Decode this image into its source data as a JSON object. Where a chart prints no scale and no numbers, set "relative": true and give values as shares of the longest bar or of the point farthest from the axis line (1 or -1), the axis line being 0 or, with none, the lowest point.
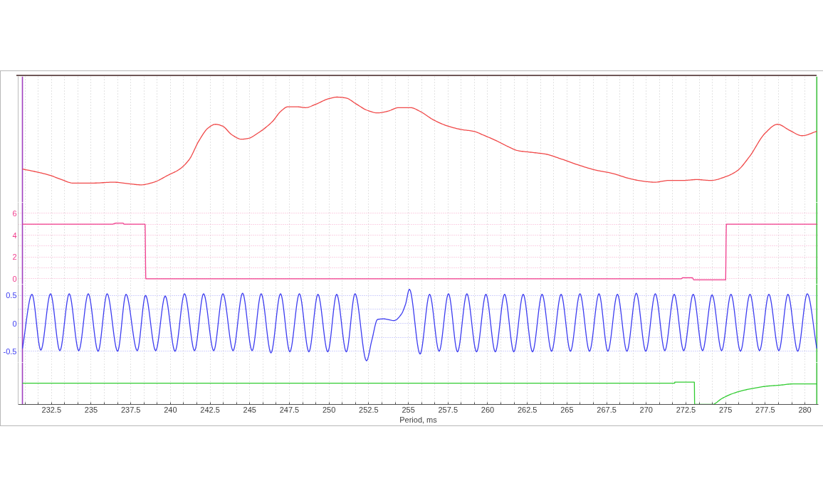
{
  "chart_data": [
    {
      "type": "line",
      "relative": true,
      "xlim": [
        230.4,
        280.85
      ],
      "tick_labels": false,
      "grid": "x",
      "xticks": [
        {
          "value": 230.833,
          "label": null
        },
        {
          "value": 231.667,
          "label": null
        },
        232.5,
        {
          "value": 233.333,
          "label": null
        },
        {
          "value": 234.167,
          "label": null
        },
        235,
        {
          "value": 235.833,
          "label": null
        },
        {
          "value": 236.667,
          "label": null
        },
        237.5,
        {
          "value": 238.333,
          "label": null
        },
        {
          "value": 239.167,
          "label": null
        },
        240,
        {
          "value": 240.833,
          "label": null
        },
        {
          "value": 241.667,
          "label": null
        },
        242.5,
        {
          "value": 243.333,
          "label": null
        },
        {
          "value": 244.167,
          "label": null
        },
        245,
        {
          "value": 245.833,
          "label": null
        },
        {
          "value": 246.667,
          "label": null
        },
        247.5,
        {
          "value": 248.333,
          "label": null
        },
        {
          "value": 249.167,
          "label": null
        },
        250,
        {
          "value": 250.833,
          "label": null
        },
        {
          "value": 251.667,
          "label": null
        },
        252.5,
        {
          "value": 253.333,
          "label": null
        },
        {
          "value": 254.167,
          "label": null
        },
        255,
        {
          "value": 255.833,
          "label": null
        },
        {
          "value": 256.667,
          "label": null
        },
        257.5,
        {
          "value": 258.333,
          "label": null
        },
        {
          "value": 259.167,
          "label": null
        },
        260,
        {
          "value": 260.833,
          "label": null
        },
        {
          "value": 261.667,
          "label": null
        },
        262.5,
        {
          "value": 263.333,
          "label": null
        },
        {
          "value": 264.167,
          "label": null
        },
        265,
        {
          "value": 265.833,
          "label": null
        },
        {
          "value": 266.667,
          "label": null
        },
        267.5,
        {
          "value": 268.333,
          "label": null
        },
        {
          "value": 269.167,
          "label": null
        },
        270,
        {
          "value": 270.833,
          "label": null
        },
        {
          "value": 271.667,
          "label": null
        },
        272.5,
        {
          "value": 273.333,
          "label": null
        },
        {
          "value": 274.167,
          "label": null
        },
        275,
        {
          "value": 275.833,
          "label": null
        },
        {
          "value": 276.667,
          "label": null
        },
        277.5,
        {
          "value": 278.333,
          "label": null
        },
        {
          "value": 279.167,
          "label": null
        },
        280
      ],
      "x": [
        230.67,
        231.49,
        232.39,
        233.13,
        233.88,
        235.07,
        236.42,
        237.5,
        238.13,
        238.95,
        239.85,
        240.59,
        241.19,
        241.79,
        242.39,
        242.84,
        243.28,
        243.88,
        244.48,
        244.92,
        245.52,
        246.42,
        246.97,
        247.41,
        247.96,
        248.52,
        249.18,
        249.95,
        250.51,
        251.06,
        251.73,
        252.4,
        253.06,
        253.72,
        254.38,
        255.15,
        255.71,
        256.59,
        257.48,
        258.36,
        259.13,
        259.69,
        260.58,
        261.24,
        261.9,
        262.79,
        263.67,
        264.56,
        265.66,
        266.77,
        267.88,
        268.98,
        269.86,
        270.53,
        271.41,
        272.3,
        273.18,
        274.07,
        274.96,
        275.73,
        276.5,
        277.5,
        278.27,
        279.05,
        279.82,
        280.75
      ],
      "color": "#f04848",
      "values": [
        0.18,
        0.15,
        0.11,
        0.06,
        0.02,
        0.02,
        0.03,
        0.01,
        0,
        0.03,
        0.11,
        0.18,
        0.29,
        0.5,
        0.65,
        0.69,
        0.67,
        0.57,
        0.52,
        0.53,
        0.59,
        0.72,
        0.84,
        0.89,
        0.89,
        0.88,
        0.92,
        0.98,
        1,
        0.99,
        0.92,
        0.85,
        0.82,
        0.84,
        0.88,
        0.88,
        0.84,
        0.74,
        0.67,
        0.63,
        0.61,
        0.57,
        0.5,
        0.44,
        0.39,
        0.37,
        0.35,
        0.3,
        0.23,
        0.17,
        0.13,
        0.07,
        0.04,
        0.03,
        0.05,
        0.05,
        0.06,
        0.05,
        0.09,
        0.16,
        0.32,
        0.59,
        0.69,
        0.62,
        0.56,
        0.61
      ],
      "ref_lines": [
        {
          "axis": "x",
          "value": 230.67,
          "color": "#a040c0"
        },
        {
          "axis": "x",
          "value": 280.75,
          "color": "#40c040"
        }
      ]
    },
    {
      "type": "line",
      "xlim": [
        230.4,
        280.85
      ],
      "ylim": [
        -0.5,
        7
      ],
      "yticks": [
        0,
        {
          "value": 1,
          "label": null
        },
        2,
        {
          "value": 3,
          "label": null
        },
        4,
        {
          "value": 5,
          "label": null
        },
        6
      ],
      "tick_labels": "y",
      "grid": true,
      "xticks": [
        {
          "value": 230.833,
          "label": null
        },
        {
          "value": 231.667,
          "label": null
        },
        232.5,
        {
          "value": 233.333,
          "label": null
        },
        {
          "value": 234.167,
          "label": null
        },
        235,
        {
          "value": 235.833,
          "label": null
        },
        {
          "value": 236.667,
          "label": null
        },
        237.5,
        {
          "value": 238.333,
          "label": null
        },
        {
          "value": 239.167,
          "label": null
        },
        240,
        {
          "value": 240.833,
          "label": null
        },
        {
          "value": 241.667,
          "label": null
        },
        242.5,
        {
          "value": 243.333,
          "label": null
        },
        {
          "value": 244.167,
          "label": null
        },
        245,
        {
          "value": 245.833,
          "label": null
        },
        {
          "value": 246.667,
          "label": null
        },
        247.5,
        {
          "value": 248.333,
          "label": null
        },
        {
          "value": 249.167,
          "label": null
        },
        250,
        {
          "value": 250.833,
          "label": null
        },
        {
          "value": 251.667,
          "label": null
        },
        252.5,
        {
          "value": 253.333,
          "label": null
        },
        {
          "value": 254.167,
          "label": null
        },
        255,
        {
          "value": 255.833,
          "label": null
        },
        {
          "value": 256.667,
          "label": null
        },
        257.5,
        {
          "value": 258.333,
          "label": null
        },
        {
          "value": 259.167,
          "label": null
        },
        260,
        {
          "value": 260.833,
          "label": null
        },
        {
          "value": 261.667,
          "label": null
        },
        262.5,
        {
          "value": 263.333,
          "label": null
        },
        {
          "value": 264.167,
          "label": null
        },
        265,
        {
          "value": 265.833,
          "label": null
        },
        {
          "value": 266.667,
          "label": null
        },
        267.5,
        {
          "value": 268.333,
          "label": null
        },
        {
          "value": 269.167,
          "label": null
        },
        270,
        {
          "value": 270.833,
          "label": null
        },
        {
          "value": 271.667,
          "label": null
        },
        272.5,
        {
          "value": 273.333,
          "label": null
        },
        {
          "value": 274.167,
          "label": null
        },
        275,
        {
          "value": 275.833,
          "label": null
        },
        {
          "value": 276.667,
          "label": null
        },
        277.5,
        {
          "value": 278.333,
          "label": null
        },
        {
          "value": 279.167,
          "label": null
        },
        280
      ],
      "x": [
        230.67,
        236.3,
        236.6,
        237.0,
        237.1,
        238.4,
        238.45,
        272.2,
        272.3,
        272.9,
        273.0,
        275.0,
        275.05,
        280.75
      ],
      "series": [
        {
          "color": "#f03c8c",
          "values": [
            5,
            5,
            5.1,
            5.1,
            5,
            5,
            0,
            0,
            0.1,
            0.1,
            -0.1,
            -0.1,
            5,
            5
          ]
        }
      ],
      "ref_lines": [
        {
          "axis": "x",
          "value": 230.67,
          "color": "#a040c0"
        },
        {
          "axis": "x",
          "value": 280.75,
          "color": "#40c040"
        }
      ]
    },
    {
      "type": "line",
      "xlim": [
        230.4,
        280.85
      ],
      "ylim": [
        -0.7,
        0.7
      ],
      "yticks": [
        -0.5,
        {
          "value": -0.25,
          "label": null
        },
        0,
        {
          "value": 0.25,
          "label": null
        },
        0.5
      ],
      "tick_labels": "y",
      "grid": true,
      "xticks": [
        {
          "value": 230.833,
          "label": null
        },
        {
          "value": 231.667,
          "label": null
        },
        232.5,
        {
          "value": 233.333,
          "label": null
        },
        {
          "value": 234.167,
          "label": null
        },
        235,
        {
          "value": 235.833,
          "label": null
        },
        {
          "value": 236.667,
          "label": null
        },
        237.5,
        {
          "value": 238.333,
          "label": null
        },
        {
          "value": 239.167,
          "label": null
        },
        240,
        {
          "value": 240.833,
          "label": null
        },
        {
          "value": 241.667,
          "label": null
        },
        242.5,
        {
          "value": 243.333,
          "label": null
        },
        {
          "value": 244.167,
          "label": null
        },
        245,
        {
          "value": 245.833,
          "label": null
        },
        {
          "value": 246.667,
          "label": null
        },
        247.5,
        {
          "value": 248.333,
          "label": null
        },
        {
          "value": 249.167,
          "label": null
        },
        250,
        {
          "value": 250.833,
          "label": null
        },
        {
          "value": 251.667,
          "label": null
        },
        252.5,
        {
          "value": 253.333,
          "label": null
        },
        {
          "value": 254.167,
          "label": null
        },
        255,
        {
          "value": 255.833,
          "label": null
        },
        {
          "value": 256.667,
          "label": null
        },
        257.5,
        {
          "value": 258.333,
          "label": null
        },
        {
          "value": 259.167,
          "label": null
        },
        260,
        {
          "value": 260.833,
          "label": null
        },
        {
          "value": 261.667,
          "label": null
        },
        262.5,
        {
          "value": 263.333,
          "label": null
        },
        {
          "value": 264.167,
          "label": null
        },
        265,
        {
          "value": 265.833,
          "label": null
        },
        {
          "value": 266.667,
          "label": null
        },
        267.5,
        {
          "value": 268.333,
          "label": null
        },
        {
          "value": 269.167,
          "label": null
        },
        270,
        {
          "value": 270.833,
          "label": null
        },
        {
          "value": 271.667,
          "label": null
        },
        272.5,
        {
          "value": 273.333,
          "label": null
        },
        {
          "value": 274.167,
          "label": null
        },
        275,
        {
          "value": 275.833,
          "label": null
        },
        {
          "value": 276.667,
          "label": null
        },
        277.5,
        {
          "value": 278.333,
          "label": null
        },
        {
          "value": 279.167,
          "label": null
        },
        280
      ],
      "x": [
        230.67,
        231.27,
        231.83,
        232.44,
        233.03,
        233.62,
        234.22,
        234.82,
        235.44,
        236.01,
        236.67,
        237.2,
        237.91,
        238.43,
        239.07,
        239.67,
        240.29,
        240.89,
        241.52,
        242.09,
        242.73,
        243.31,
        243.95,
        244.55,
        245.15,
        245.72,
        246.34,
        246.94,
        247.53,
        248.13,
        248.73,
        249.3,
        249.92,
        250.48,
        251.09,
        251.64,
        252.36,
        252.7,
        253.06,
        253.43,
        254.1,
        254.55,
        254.82,
        255.07,
        255.74,
        256.34,
        256.94,
        257.53,
        258.1,
        258.69,
        259.3,
        259.89,
        260.48,
        261.07,
        261.65,
        262.24,
        262.83,
        263.43,
        264.03,
        264.63,
        265.22,
        265.82,
        266.42,
        267.02,
        267.58,
        268.18,
        268.78,
        269.37,
        269.97,
        270.57,
        271.17,
        271.76,
        272.36,
        272.96,
        273.55,
        274.15,
        274.75,
        275.34,
        275.94,
        276.54,
        277.14,
        277.73,
        278.36,
        278.93,
        279.55,
        280.15,
        280.75
      ],
      "series": [
        {
          "color": "#3c3cf0",
          "values": [
            -0.45,
            0.52,
            -0.48,
            0.53,
            -0.49,
            0.53,
            -0.49,
            0.53,
            -0.5,
            0.53,
            -0.5,
            0.52,
            -0.49,
            0.5,
            -0.49,
            0.49,
            -0.5,
            0.53,
            -0.49,
            0.53,
            -0.49,
            0.53,
            -0.49,
            0.54,
            -0.49,
            0.53,
            -0.53,
            0.53,
            -0.51,
            0.53,
            -0.51,
            0.52,
            -0.51,
            0.52,
            -0.51,
            0.53,
            -0.67,
            -0.3,
            0.07,
            0.08,
            0.05,
            0.16,
            0.34,
            0.61,
            -0.55,
            0.52,
            -0.5,
            0.53,
            -0.51,
            0.53,
            -0.51,
            0.52,
            -0.51,
            0.52,
            -0.51,
            0.52,
            -0.51,
            0.52,
            -0.5,
            0.52,
            -0.5,
            0.53,
            -0.5,
            0.53,
            -0.5,
            0.52,
            -0.5,
            0.54,
            -0.5,
            0.53,
            -0.49,
            0.52,
            -0.49,
            0.52,
            -0.49,
            0.51,
            -0.49,
            0.52,
            -0.5,
            0.52,
            -0.49,
            0.52,
            -0.49,
            0.52,
            -0.5,
            0.53,
            -0.45
          ]
        }
      ],
      "ref_lines": [
        {
          "axis": "x",
          "value": 230.67,
          "color": "#a040c0"
        },
        {
          "axis": "x",
          "value": 280.75,
          "color": "#40c040"
        }
      ]
    },
    {
      "type": "line",
      "relative": true,
      "xlim": [
        230.4,
        280.85
      ],
      "tick_labels": "x",
      "grid": "x",
      "xlabel": "Period, ms",
      "xticks": [
        {
          "value": 230.833,
          "label": null
        },
        {
          "value": 231.667,
          "label": null
        },
        232.5,
        {
          "value": 233.333,
          "label": null
        },
        {
          "value": 234.167,
          "label": null
        },
        235,
        {
          "value": 235.833,
          "label": null
        },
        {
          "value": 236.667,
          "label": null
        },
        237.5,
        {
          "value": 238.333,
          "label": null
        },
        {
          "value": 239.167,
          "label": null
        },
        240,
        {
          "value": 240.833,
          "label": null
        },
        {
          "value": 241.667,
          "label": null
        },
        242.5,
        {
          "value": 243.333,
          "label": null
        },
        {
          "value": 244.167,
          "label": null
        },
        245,
        {
          "value": 245.833,
          "label": null
        },
        {
          "value": 246.667,
          "label": null
        },
        247.5,
        {
          "value": 248.333,
          "label": null
        },
        {
          "value": 249.167,
          "label": null
        },
        250,
        {
          "value": 250.833,
          "label": null
        },
        {
          "value": 251.667,
          "label": null
        },
        252.5,
        {
          "value": 253.333,
          "label": null
        },
        {
          "value": 254.167,
          "label": null
        },
        255,
        {
          "value": 255.833,
          "label": null
        },
        {
          "value": 256.667,
          "label": null
        },
        257.5,
        {
          "value": 258.333,
          "label": null
        },
        {
          "value": 259.167,
          "label": null
        },
        260,
        {
          "value": 260.833,
          "label": null
        },
        {
          "value": 261.667,
          "label": null
        },
        262.5,
        {
          "value": 263.333,
          "label": null
        },
        {
          "value": 264.167,
          "label": null
        },
        265,
        {
          "value": 265.833,
          "label": null
        },
        {
          "value": 266.667,
          "label": null
        },
        267.5,
        {
          "value": 268.333,
          "label": null
        },
        {
          "value": 269.167,
          "label": null
        },
        270,
        {
          "value": 270.833,
          "label": null
        },
        {
          "value": 271.667,
          "label": null
        },
        272.5,
        {
          "value": 273.333,
          "label": null
        },
        {
          "value": 274.167,
          "label": null
        },
        275,
        {
          "value": 275.833,
          "label": null
        },
        {
          "value": 276.667,
          "label": null
        },
        277.5,
        {
          "value": 278.333,
          "label": null
        },
        {
          "value": 279.167,
          "label": null
        },
        280
      ],
      "x": [
        230.67,
        271.79,
        271.8,
        273.03,
        273.05,
        274.15,
        274.78,
        275.38,
        276.12,
        276.87,
        277.62,
        278.36,
        279.25,
        280.75
      ],
      "color": "#30cc30",
      "values": [
        0.95,
        0.95,
        1,
        1,
        0,
        0,
        0.27,
        0.47,
        0.63,
        0.74,
        0.82,
        0.86,
        0.92,
        0.92
      ],
      "ref_lines": [
        {
          "axis": "x",
          "value": 230.67,
          "color": "#a040c0"
        },
        {
          "axis": "x",
          "value": 280.75,
          "color": "#40c040"
        }
      ]
    }
  ]
}
